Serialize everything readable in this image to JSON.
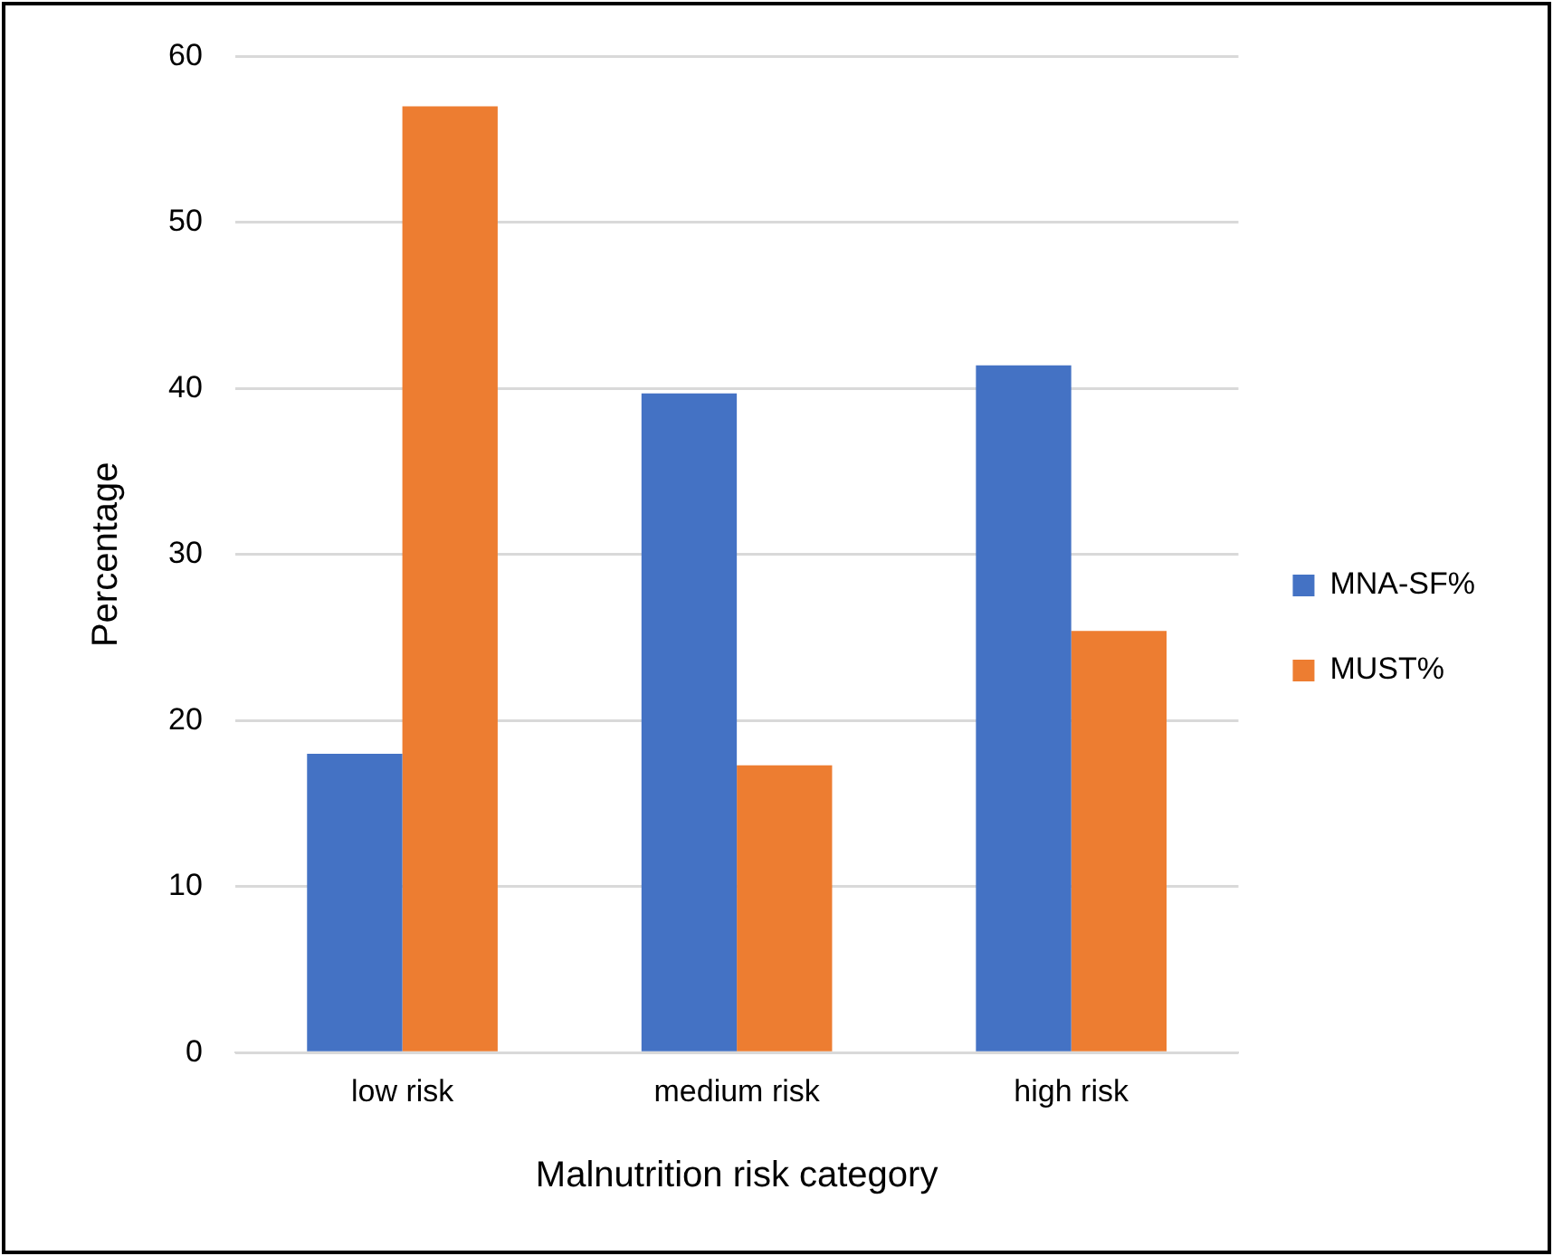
{
  "chart_data": {
    "type": "bar",
    "xlabel": "Malnutrition risk category",
    "ylabel": "Percentage",
    "categories": [
      "low risk",
      "medium risk",
      "high risk"
    ],
    "series": [
      {
        "name": "MNA-SF%",
        "color": "#4472c4",
        "values": [
          18.0,
          39.7,
          41.4
        ]
      },
      {
        "name": "MUST%",
        "color": "#ed7d31",
        "values": [
          57.0,
          17.3,
          25.4
        ]
      }
    ],
    "ylim": [
      0,
      60
    ],
    "yticks": [
      0,
      10,
      20,
      30,
      40,
      50,
      60
    ],
    "grid": "y",
    "legend": "right"
  }
}
